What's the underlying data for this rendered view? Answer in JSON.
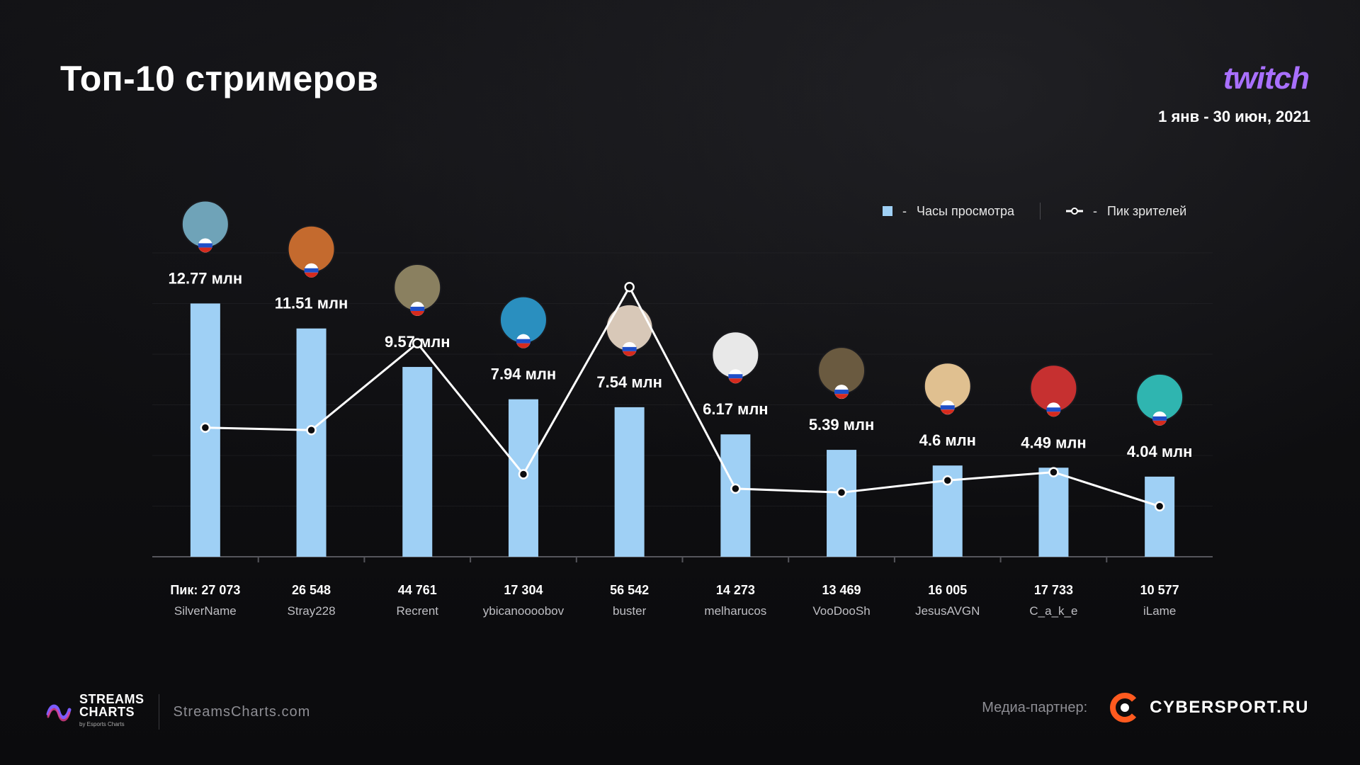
{
  "title": "Топ-10 стримеров",
  "brand": {
    "name": "twitch",
    "color": "#a970ff"
  },
  "date_range": "1 янв - 30 июн, 2021",
  "legend": {
    "dash": "-",
    "watch_hours": "Часы просмотра",
    "peak_viewers": "Пик зрителей"
  },
  "colors": {
    "bar": "#9fd0f5",
    "line": "#ffffff",
    "background": "#0d0d0f",
    "grid": "#2a2a2e"
  },
  "chart_data": {
    "type": "bar",
    "title": "Топ-10 стримеров",
    "categories": [
      "SilverName",
      "Stray228",
      "Recrent",
      "ybicanoooobov",
      "buster",
      "melharucos",
      "VooDooSh",
      "JesusAVGN",
      "C_a_k_e",
      "iLame"
    ],
    "series": [
      {
        "name": "Часы просмотра",
        "type": "bar",
        "unit": "млн",
        "values": [
          12.77,
          11.51,
          9.57,
          7.94,
          7.54,
          6.17,
          5.39,
          4.6,
          4.49,
          4.04
        ],
        "labels": [
          "12.77 млн",
          "11.51 млн",
          "9.57 млн",
          "7.94 млн",
          "7.54 млн",
          "6.17 млн",
          "5.39 млн",
          "4.6 млн",
          "4.49 млн",
          "4.04 млн"
        ]
      },
      {
        "name": "Пик зрителей",
        "type": "line",
        "values": [
          27073,
          26548,
          44761,
          17304,
          56542,
          14273,
          13469,
          16005,
          17733,
          10577
        ],
        "labels": [
          "Пик: 27 073",
          "26 548",
          "44 761",
          "17 304",
          "56 542",
          "14 273",
          "13 469",
          "16 005",
          "17 733",
          "10 577"
        ]
      }
    ],
    "bar_ylim": [
      0,
      14
    ],
    "line_ylim": [
      0,
      90000
    ],
    "grid": true,
    "legend_position": "top-right",
    "xlabel": "",
    "ylabel": ""
  },
  "footer": {
    "streams_charts": "STREAMS CHARTS",
    "streams_charts_line1": "STREAMS",
    "streams_charts_line2": "CHARTS",
    "by_line": "by Esports Charts",
    "site": "StreamsCharts.com",
    "partner_label": "Медиа-партнер:",
    "partner_name": "CYBERSPORT.RU"
  }
}
